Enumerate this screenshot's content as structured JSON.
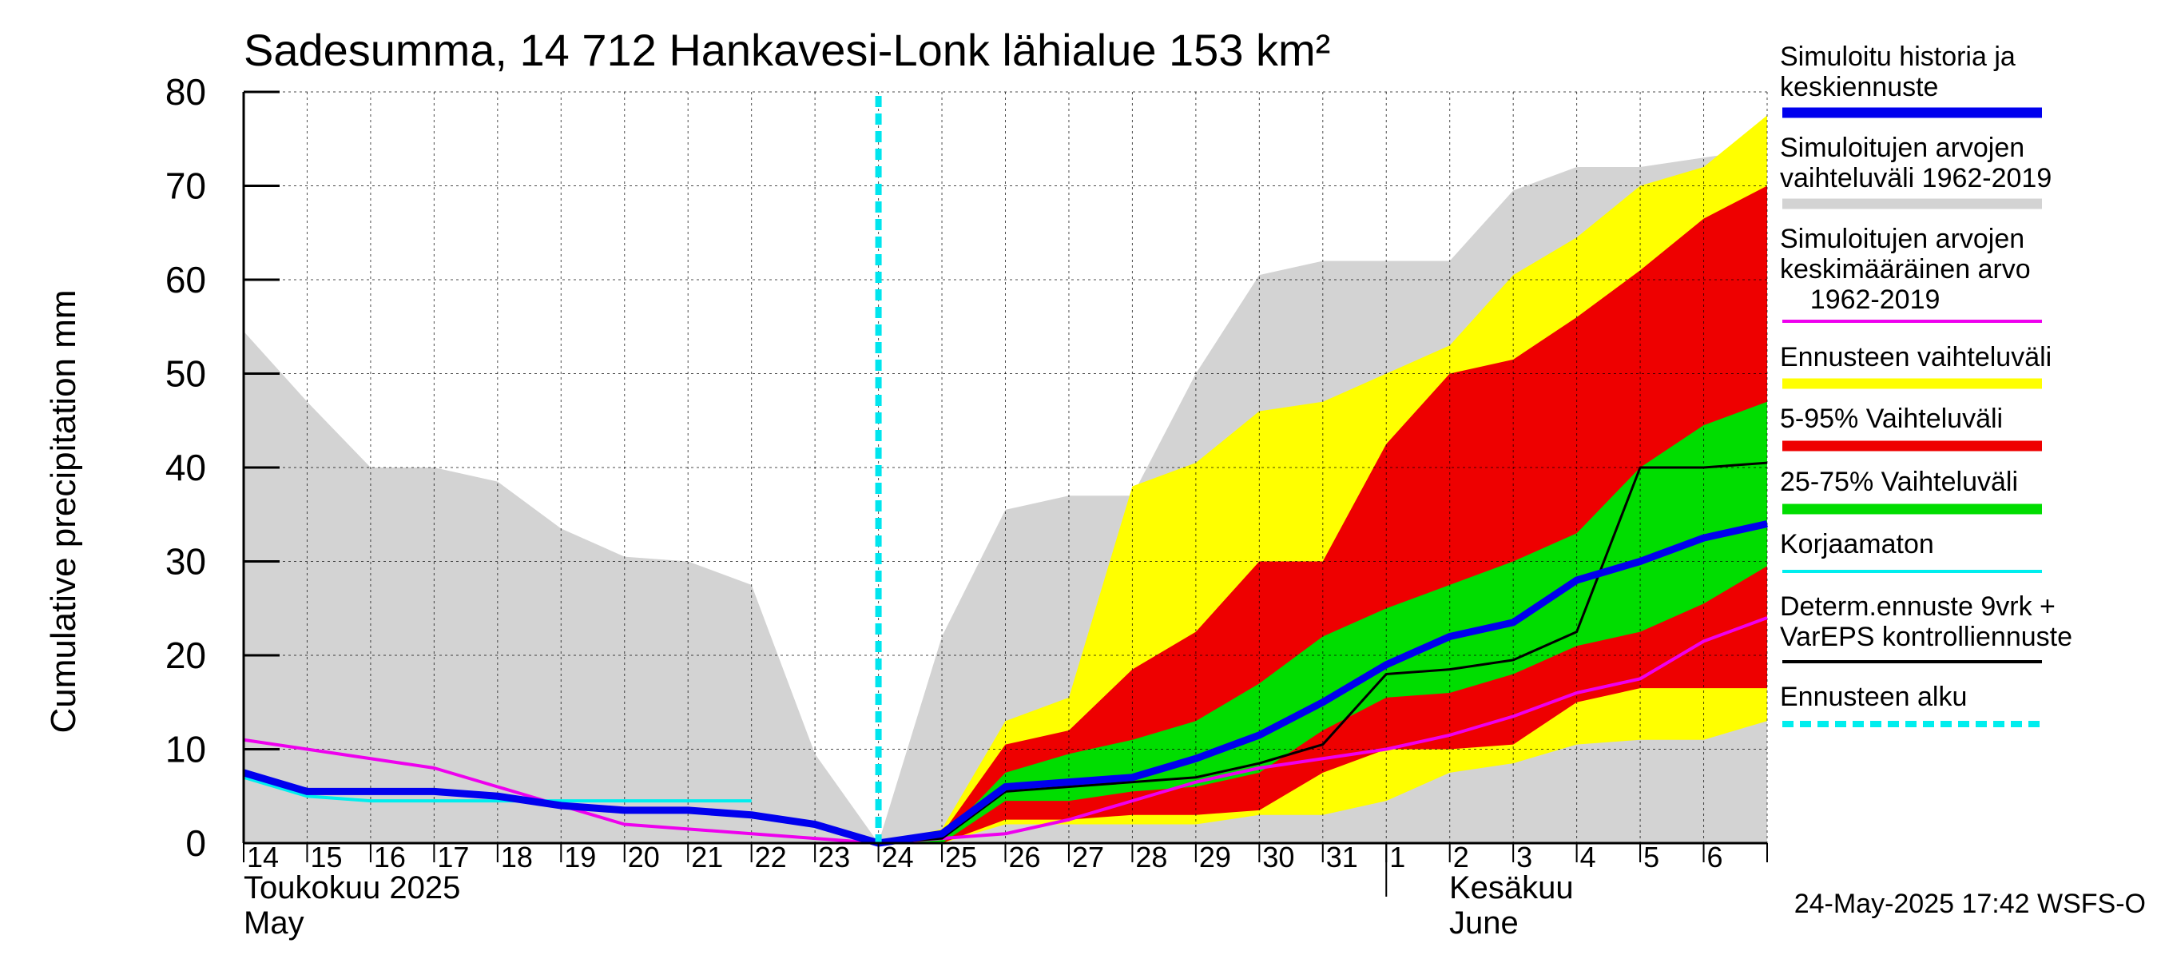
{
  "title": "Sadesumma, 14 712 Hankavesi-Lonk lähialue 153 km²",
  "footer": "24-May-2025 17:42 WSFS-O",
  "month_labels": {
    "may_fi": "Toukokuu  2025",
    "may_en": "May",
    "june_fi": "Kesäkuu",
    "june_en": "June"
  },
  "legend": [
    {
      "label": "Simuloitu historia ja\nkeskiennuste",
      "color": "#0000ee",
      "style": "thick"
    },
    {
      "label": "Simuloitujen arvojen\nvaihteluväli 1962-2019",
      "color": "#d3d3d3",
      "style": "thick"
    },
    {
      "label": "Simuloitujen arvojen\nkeskimääräinen arvo\n    1962-2019",
      "color": "#ee00ee",
      "style": "thin"
    },
    {
      "label": "Ennusteen vaihteluväli",
      "color": "#ffff00",
      "style": "thick"
    },
    {
      "label": "5-95% Vaihteluväli",
      "color": "#ee0000",
      "style": "thick"
    },
    {
      "label": "25-75% Vaihteluväli",
      "color": "#00dd00",
      "style": "thick"
    },
    {
      "label": "Korjaamaton",
      "color": "#00eeee",
      "style": "thin"
    },
    {
      "label": "Determ.ennuste 9vrk +\nVarEPS kontrolliennuste",
      "color": "#000000",
      "style": "thin"
    },
    {
      "label": "Ennusteen alku",
      "color": "#00eeee",
      "style": "dashed"
    }
  ],
  "chart_data": {
    "type": "area",
    "title": "Sadesumma, 14 712 Hankavesi-Lonk lähialue 153 km²",
    "ylabel": "Cumulative precipitation   mm",
    "ylim": [
      0,
      80
    ],
    "yticks": [
      0,
      10,
      20,
      30,
      40,
      50,
      60,
      70,
      80
    ],
    "x_tick_labels": [
      "14",
      "15",
      "16",
      "17",
      "18",
      "19",
      "20",
      "21",
      "22",
      "23",
      "24",
      "25",
      "26",
      "27",
      "28",
      "29",
      "30",
      "31",
      "1",
      "2",
      "3",
      "4",
      "5",
      "6"
    ],
    "x_start": "2025-05-14",
    "forecast_start": "2025-05-24",
    "grid": true,
    "series": [
      {
        "name": "Simuloitujen arvojen vaihteluväli 1962-2019",
        "kind": "band",
        "color": "#d3d3d3",
        "x": [
          "2025-05-14",
          "2025-05-15",
          "2025-05-16",
          "2025-05-17",
          "2025-05-18",
          "2025-05-19",
          "2025-05-20",
          "2025-05-21",
          "2025-05-22",
          "2025-05-23",
          "2025-05-24",
          "2025-05-25",
          "2025-05-26",
          "2025-05-27",
          "2025-05-28",
          "2025-05-29",
          "2025-05-30",
          "2025-05-31",
          "2025-06-01",
          "2025-06-02",
          "2025-06-03",
          "2025-06-04",
          "2025-06-05",
          "2025-06-06",
          "2025-06-07"
        ],
        "upper": [
          54.5,
          47,
          40,
          40,
          38.5,
          33.5,
          30.5,
          30,
          27.5,
          9.5,
          0,
          22,
          35.5,
          37,
          37,
          50,
          60.5,
          62,
          62,
          62,
          69.5,
          72,
          72,
          73,
          74
        ],
        "lower": [
          0,
          0,
          0,
          0,
          0,
          0,
          0,
          0,
          0,
          0,
          0,
          0,
          0,
          0,
          0,
          0,
          0,
          0,
          0,
          0,
          0,
          0,
          0,
          0,
          0
        ]
      },
      {
        "name": "Ennusteen vaihteluväli",
        "kind": "band",
        "color": "#ffff00",
        "x": [
          "2025-05-24",
          "2025-05-25",
          "2025-05-26",
          "2025-05-27",
          "2025-05-28",
          "2025-05-29",
          "2025-05-30",
          "2025-05-31",
          "2025-06-01",
          "2025-06-02",
          "2025-06-03",
          "2025-06-04",
          "2025-06-05",
          "2025-06-06",
          "2025-06-07"
        ],
        "upper": [
          0,
          1.5,
          13,
          15.5,
          38,
          40.5,
          46,
          47,
          50,
          53,
          60.5,
          64.5,
          70,
          72,
          77.5
        ],
        "lower": [
          0,
          0,
          2,
          2,
          2,
          2,
          3,
          3,
          4.5,
          7.5,
          8.5,
          10.5,
          11,
          11,
          13
        ]
      },
      {
        "name": "5-95% Vaihteluväli",
        "kind": "band",
        "color": "#ee0000",
        "x": [
          "2025-05-24",
          "2025-05-25",
          "2025-05-26",
          "2025-05-27",
          "2025-05-28",
          "2025-05-29",
          "2025-05-30",
          "2025-05-31",
          "2025-06-01",
          "2025-06-02",
          "2025-06-03",
          "2025-06-04",
          "2025-06-05",
          "2025-06-06",
          "2025-06-07"
        ],
        "upper": [
          0,
          1,
          10.5,
          12,
          18.5,
          22.5,
          30,
          30,
          42.5,
          50,
          51.5,
          56,
          61,
          66.5,
          70
        ],
        "lower": [
          0,
          0,
          2.5,
          2.5,
          3,
          3,
          3.5,
          7.5,
          10,
          10,
          10.5,
          15,
          16.5,
          16.5,
          16.5
        ]
      },
      {
        "name": "25-75% Vaihteluväli",
        "kind": "band",
        "color": "#00dd00",
        "x": [
          "2025-05-24",
          "2025-05-25",
          "2025-05-26",
          "2025-05-27",
          "2025-05-28",
          "2025-05-29",
          "2025-05-30",
          "2025-05-31",
          "2025-06-01",
          "2025-06-02",
          "2025-06-03",
          "2025-06-04",
          "2025-06-05",
          "2025-06-06",
          "2025-06-07"
        ],
        "upper": [
          0,
          0.5,
          7.5,
          9.5,
          11,
          13,
          17,
          22,
          25,
          27.5,
          30,
          33,
          40,
          44.5,
          47
        ],
        "lower": [
          0,
          0,
          4.5,
          4.5,
          5.5,
          6,
          7.5,
          12,
          15.5,
          16,
          18,
          21,
          22.5,
          25.5,
          29.5
        ]
      },
      {
        "name": "Simuloitujen arvojen keskimääräinen arvo 1962-2019",
        "kind": "line",
        "color": "#ee00ee",
        "width": 4,
        "x": [
          "2025-05-14",
          "2025-05-15",
          "2025-05-16",
          "2025-05-17",
          "2025-05-18",
          "2025-05-19",
          "2025-05-20",
          "2025-05-21",
          "2025-05-22",
          "2025-05-23",
          "2025-05-24",
          "2025-05-25",
          "2025-05-26",
          "2025-05-27",
          "2025-05-28",
          "2025-05-29",
          "2025-05-30",
          "2025-05-31",
          "2025-06-01",
          "2025-06-02",
          "2025-06-03",
          "2025-06-04",
          "2025-06-05",
          "2025-06-06",
          "2025-06-07"
        ],
        "y": [
          11,
          10,
          9,
          8,
          6,
          4,
          2,
          1.5,
          1,
          0.5,
          0,
          0.5,
          1,
          2.5,
          4.5,
          6.5,
          8,
          9,
          10,
          11.5,
          13.5,
          16,
          17.5,
          21.5,
          24
        ]
      },
      {
        "name": "Korjaamaton",
        "kind": "line",
        "color": "#00eeee",
        "width": 4,
        "x": [
          "2025-05-14",
          "2025-05-15",
          "2025-05-16",
          "2025-05-17",
          "2025-05-18",
          "2025-05-19",
          "2025-05-20",
          "2025-05-21",
          "2025-05-22",
          "2025-05-23",
          "2025-05-24"
        ],
        "y": [
          7,
          5,
          4.5,
          4.5,
          4.5,
          4.5,
          4.5,
          4.5,
          4.5,
          null,
          null
        ]
      },
      {
        "name": "Determ.ennuste 9vrk + VarEPS kontrolliennuste",
        "kind": "line",
        "color": "#000000",
        "width": 3,
        "x": [
          "2025-05-24",
          "2025-05-25",
          "2025-05-26",
          "2025-05-27",
          "2025-05-28",
          "2025-05-29",
          "2025-05-30",
          "2025-05-31",
          "2025-06-01",
          "2025-06-02",
          "2025-06-03",
          "2025-06-04",
          "2025-06-05",
          "2025-06-06",
          "2025-06-07"
        ],
        "y": [
          0,
          0.5,
          5.5,
          6,
          6.5,
          7,
          8.5,
          10.5,
          18,
          18.5,
          19.5,
          22.5,
          40,
          40,
          40.5
        ]
      },
      {
        "name": "Simuloitu historia ja keskiennuste",
        "kind": "line",
        "color": "#0000ee",
        "width": 9,
        "x": [
          "2025-05-14",
          "2025-05-15",
          "2025-05-16",
          "2025-05-17",
          "2025-05-18",
          "2025-05-19",
          "2025-05-20",
          "2025-05-21",
          "2025-05-22",
          "2025-05-23",
          "2025-05-24",
          "2025-05-25",
          "2025-05-26",
          "2025-05-27",
          "2025-05-28",
          "2025-05-29",
          "2025-05-30",
          "2025-05-31",
          "2025-06-01",
          "2025-06-02",
          "2025-06-03",
          "2025-06-04",
          "2025-06-05",
          "2025-06-06",
          "2025-06-07"
        ],
        "y": [
          7.5,
          5.5,
          5.5,
          5.5,
          5,
          4,
          3.5,
          3.5,
          3,
          2,
          0,
          1,
          6,
          6.5,
          7,
          9,
          11.5,
          15,
          19,
          22,
          23.5,
          28,
          30,
          32.5,
          34
        ]
      }
    ]
  }
}
